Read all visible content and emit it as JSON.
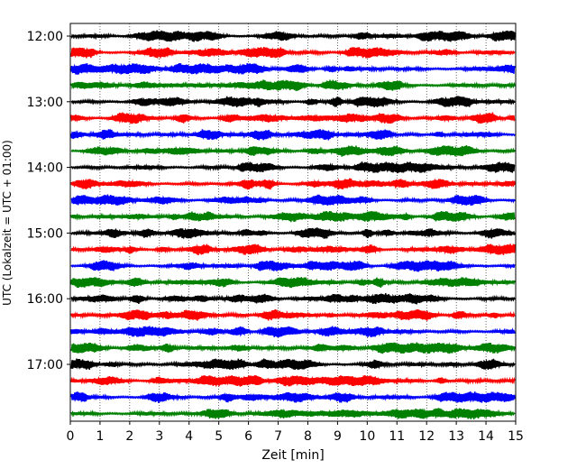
{
  "chart_data": {
    "type": "line",
    "title": "",
    "xlabel": "Zeit  [min]",
    "ylabel": "UTC (Lokalzeit = UTC + 01:00)",
    "xlim": [
      0,
      15
    ],
    "xticks": [
      "0",
      "1",
      "2",
      "3",
      "4",
      "5",
      "6",
      "7",
      "8",
      "9",
      "10",
      "11",
      "12",
      "13",
      "14",
      "15"
    ],
    "yticks": [
      "12:00",
      "13:00",
      "14:00",
      "15:00",
      "16:00",
      "17:00"
    ],
    "x_grid": "dotted",
    "trace_interval_minutes": 15,
    "color_cycle": [
      "#000000",
      "#ff0000",
      "#0000ff",
      "#008000"
    ],
    "traces": [
      {
        "start": "12:00"
      },
      {
        "start": "12:15"
      },
      {
        "start": "12:30"
      },
      {
        "start": "12:45"
      },
      {
        "start": "13:00"
      },
      {
        "start": "13:15"
      },
      {
        "start": "13:30"
      },
      {
        "start": "13:45"
      },
      {
        "start": "14:00"
      },
      {
        "start": "14:15"
      },
      {
        "start": "14:30"
      },
      {
        "start": "14:45"
      },
      {
        "start": "15:00"
      },
      {
        "start": "15:15"
      },
      {
        "start": "15:30"
      },
      {
        "start": "15:45"
      },
      {
        "start": "16:00"
      },
      {
        "start": "16:15"
      },
      {
        "start": "16:30"
      },
      {
        "start": "16:45"
      },
      {
        "start": "17:00"
      },
      {
        "start": "17:15"
      },
      {
        "start": "17:30"
      },
      {
        "start": "17:45"
      }
    ]
  }
}
